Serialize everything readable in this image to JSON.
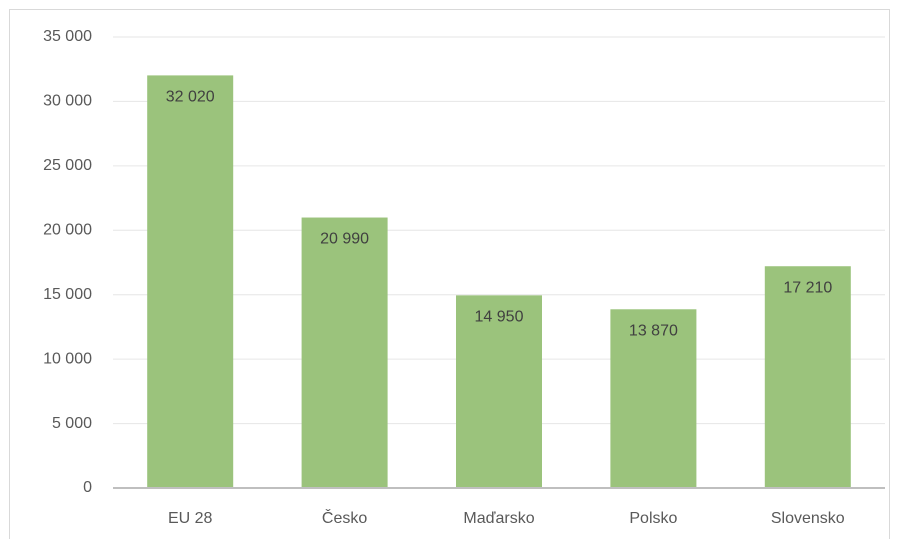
{
  "chart_data": {
    "type": "bar",
    "categories": [
      "EU 28",
      "Česko",
      "Maďarsko",
      "Polsko",
      "Slovensko"
    ],
    "values": [
      32020,
      20990,
      14950,
      13870,
      17210
    ],
    "value_labels": [
      "32 020",
      "20 990",
      "14 950",
      "13 870",
      "17 210"
    ],
    "color": "#9bc37c",
    "ylim": [
      0,
      35000
    ],
    "yticks": [
      0,
      {
        "value": 5000,
        "label": "5 000"
      },
      {
        "value": 10000,
        "label": "10 000"
      },
      {
        "value": 15000,
        "label": "15 000"
      },
      {
        "value": 20000,
        "label": "20 000"
      },
      {
        "value": 25000,
        "label": "25 000"
      },
      {
        "value": 30000,
        "label": "30 000"
      },
      {
        "value": 35000,
        "label": "35 000"
      }
    ],
    "grid": true
  }
}
